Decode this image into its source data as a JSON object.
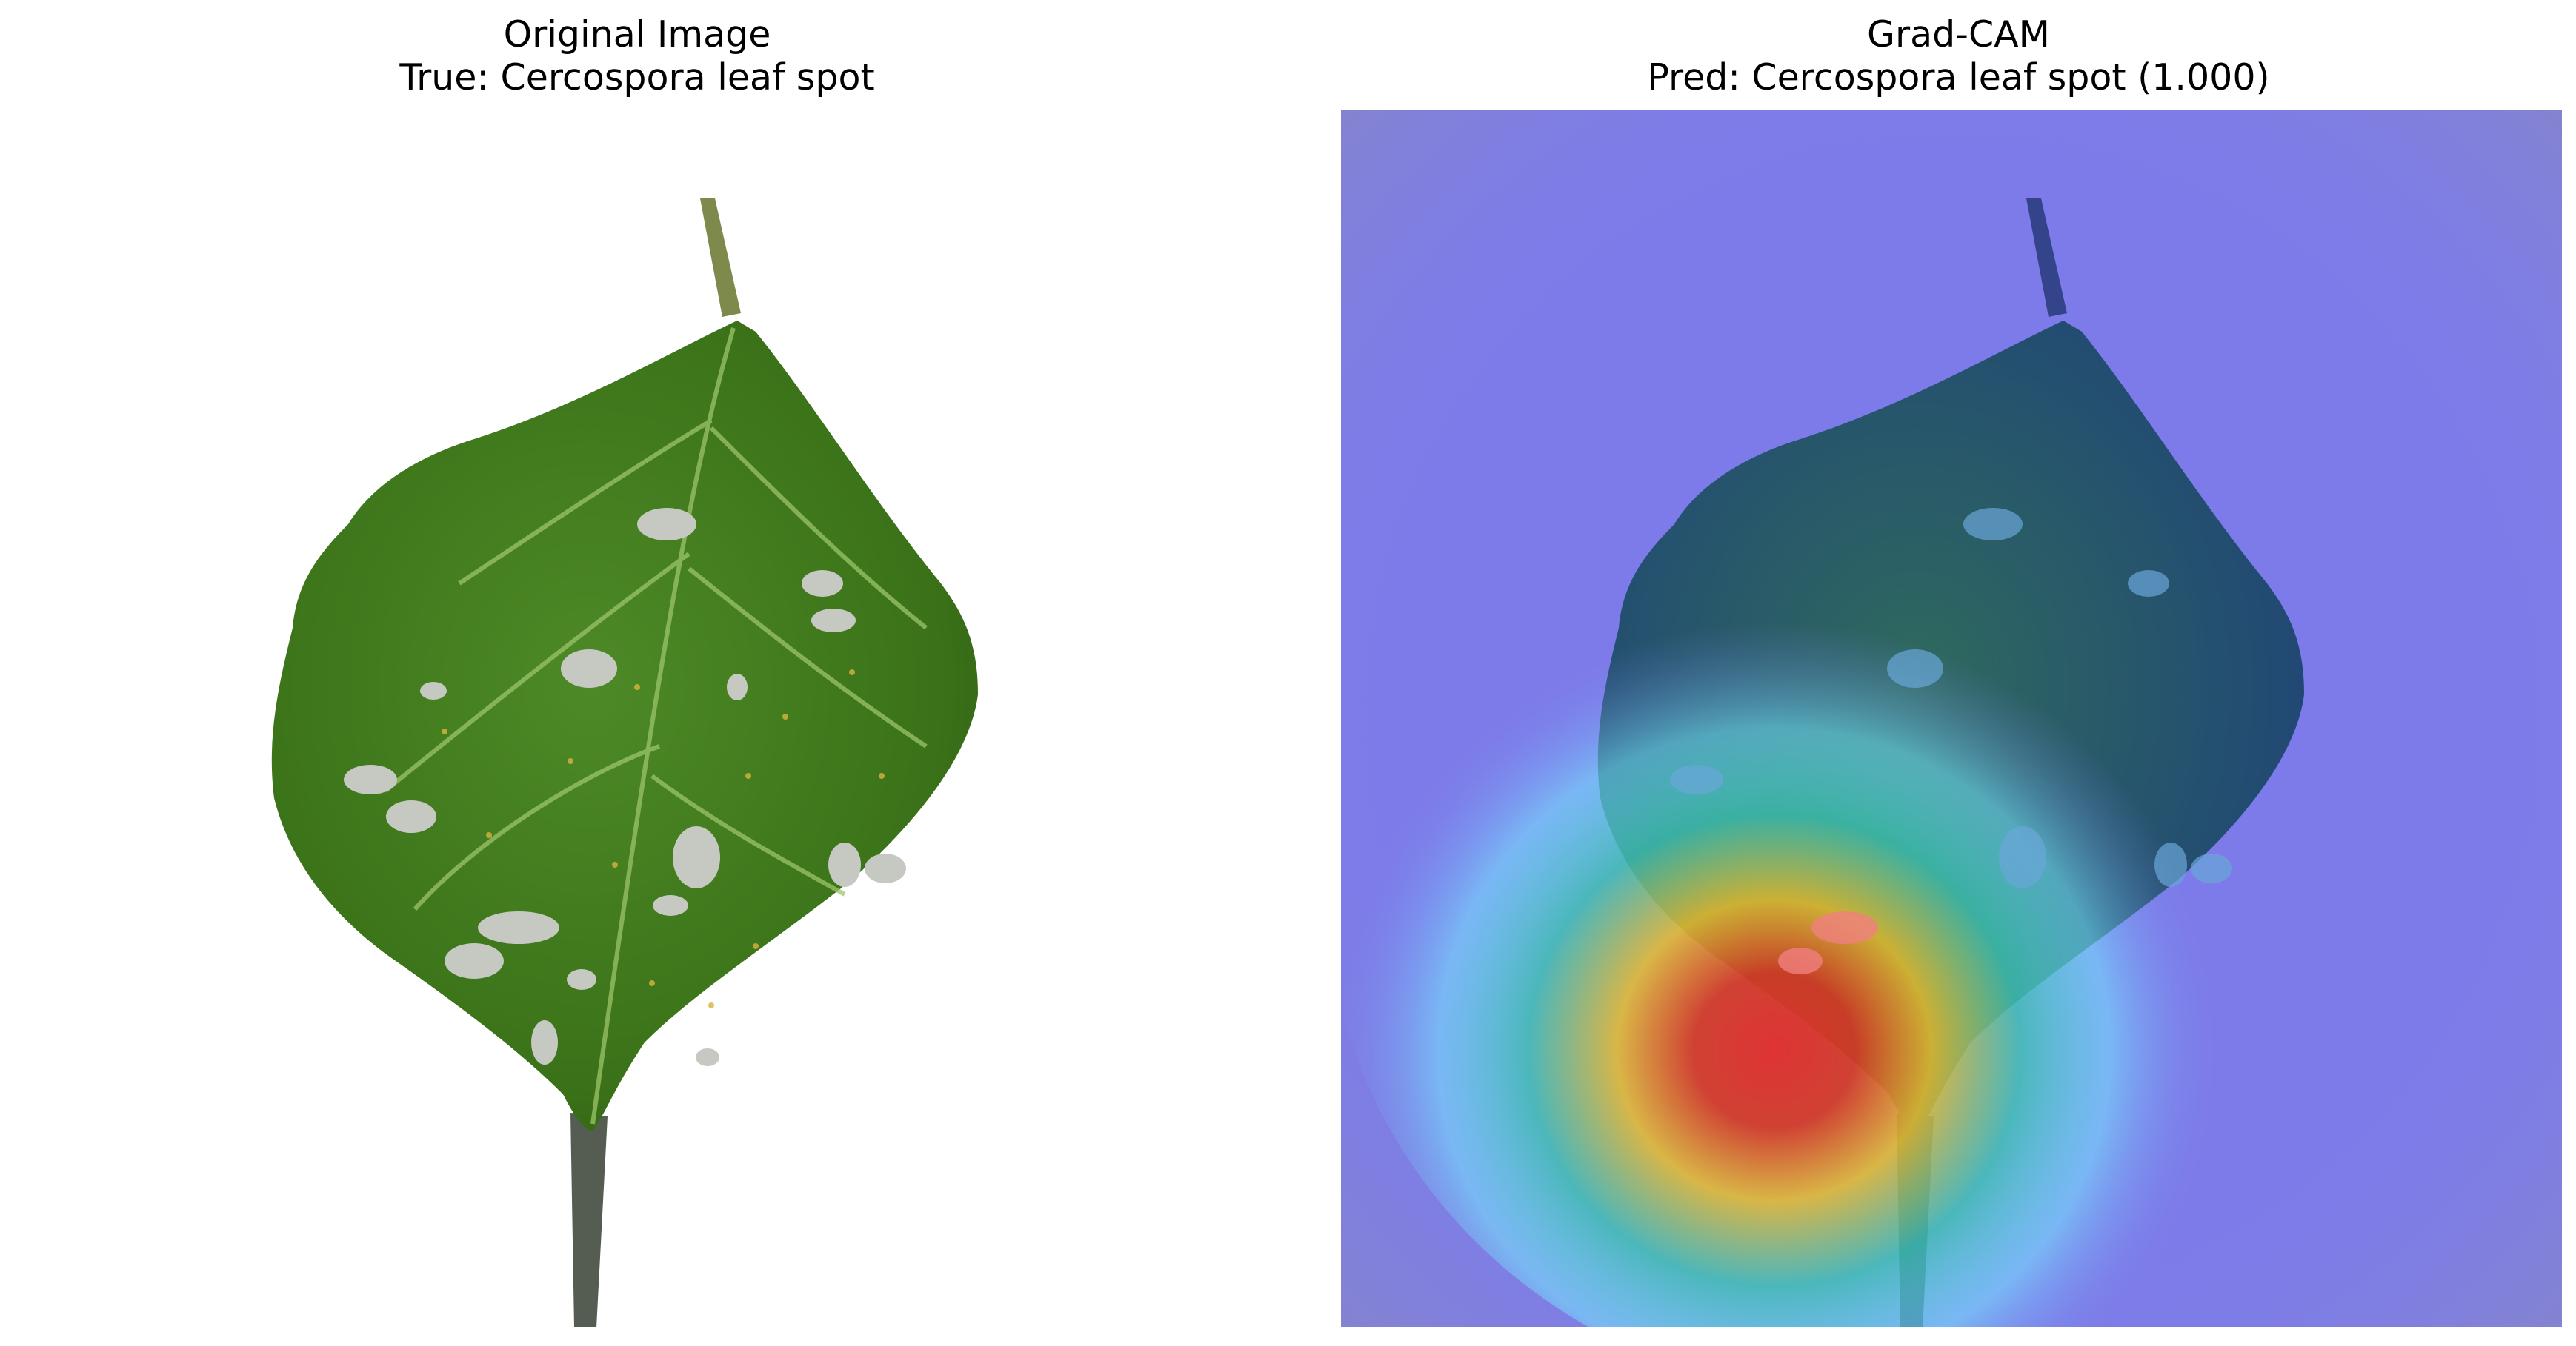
{
  "figure": {
    "left_panel": {
      "title": "Original Image",
      "subtitle": "True: Cercospora leaf spot"
    },
    "right_panel": {
      "title": "Grad-CAM",
      "subtitle": "Pred: Cercospora leaf spot (1.000)"
    }
  },
  "colors": {
    "leaf_green": "#3f7a1e",
    "leaf_dark": "#2b5512",
    "vein": "#9cc46a",
    "lesion": "#c9ccc4",
    "overlay_base": "#7a78e8",
    "heat_hot": "#e4302a",
    "heat_warm": "#e9c02a",
    "heat_mid": "#3fc6b0",
    "heat_cool": "#76e8ff"
  }
}
